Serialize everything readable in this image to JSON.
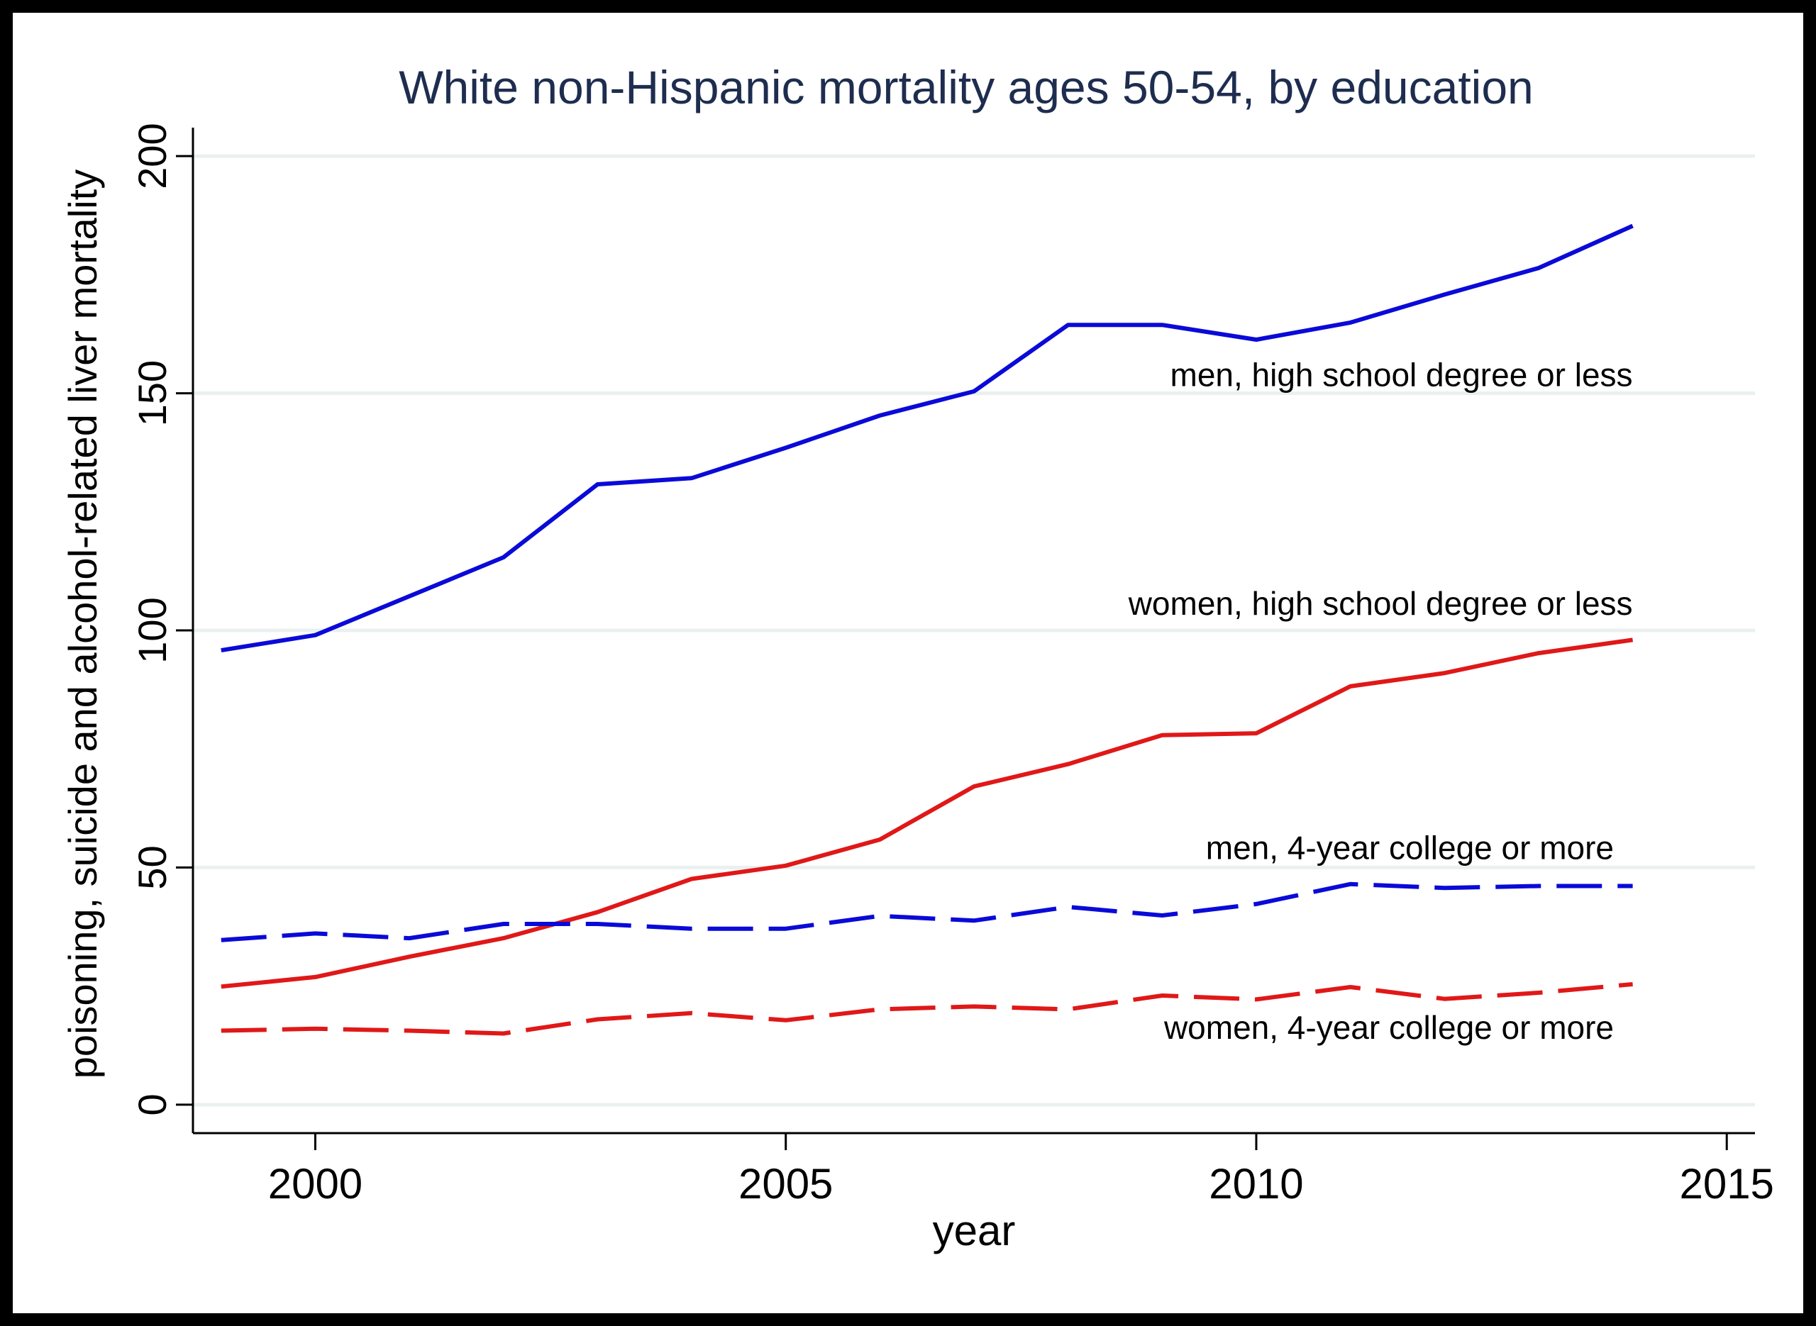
{
  "chart_data": {
    "type": "line",
    "title": "White non-Hispanic mortality ages 50-54, by education",
    "xlabel": "year",
    "ylabel": "poisoning, suicide and alcohol-related liver mortality",
    "xlim": [
      1998.7,
      2015.3
    ],
    "ylim": [
      -6,
      206
    ],
    "x_ticks": [
      "2000",
      "2005",
      "2010",
      "2015"
    ],
    "x_tick_values": [
      2000,
      2005,
      2010,
      2015
    ],
    "y_ticks": [
      "0",
      "50",
      "100",
      "150",
      "200"
    ],
    "y_tick_values": [
      0,
      50,
      100,
      150,
      200
    ],
    "grid": true,
    "legend": "none",
    "x": [
      1999,
      2000,
      2001,
      2002,
      2003,
      2004,
      2005,
      2006,
      2007,
      2008,
      2009,
      2010,
      2011,
      2012,
      2013,
      2014
    ],
    "series": [
      {
        "name": "men, high school degree or less",
        "style": "solid",
        "color": "#0a0ad8",
        "values": [
          95.8,
          99.0,
          107.2,
          115.4,
          130.8,
          132.1,
          138.5,
          145.3,
          150.4,
          164.4,
          164.4,
          161.3,
          164.9,
          170.8,
          176.4,
          185.3
        ]
      },
      {
        "name": "women, high school degree or less",
        "style": "solid",
        "color": "#e01818",
        "values": [
          24.9,
          26.9,
          31.2,
          35.1,
          40.6,
          47.6,
          50.4,
          55.9,
          67.1,
          71.8,
          77.9,
          78.3,
          88.2,
          91.0,
          95.2,
          98.0
        ]
      },
      {
        "name": "men, 4-year college or more",
        "style": "dashed",
        "color": "#0a0ad8",
        "values": [
          34.7,
          36.1,
          35.1,
          38.1,
          38.1,
          37.1,
          37.1,
          39.8,
          38.8,
          41.7,
          39.9,
          42.3,
          46.5,
          45.7,
          46.1,
          46.1
        ]
      },
      {
        "name": "women, 4-year college or more",
        "style": "dashed",
        "color": "#e01818",
        "values": [
          15.6,
          16.0,
          15.6,
          15.0,
          18.0,
          19.3,
          17.8,
          20.1,
          20.7,
          20.1,
          23.0,
          22.2,
          24.8,
          22.3,
          23.6,
          25.4
        ]
      }
    ],
    "annotations": [
      {
        "text": "men, high school degree or less",
        "x": 2014.0,
        "y": 151.5,
        "anchor": "end",
        "series": 0
      },
      {
        "text": "women, high school degree or less",
        "x": 2014.0,
        "y": 103.3,
        "anchor": "end",
        "series": 1
      },
      {
        "text": "men, 4-year college or more",
        "x": 2013.8,
        "y": 51.8,
        "anchor": "end",
        "series": 2
      },
      {
        "text": "women, 4-year college or more",
        "x": 2013.8,
        "y": 13.9,
        "anchor": "end",
        "series": 3
      }
    ],
    "colors": {
      "background": "#ffffff",
      "frame": "#000000",
      "gridline": "#eaf0f0",
      "title": "#1e2d4f",
      "axis": "#000000"
    }
  }
}
